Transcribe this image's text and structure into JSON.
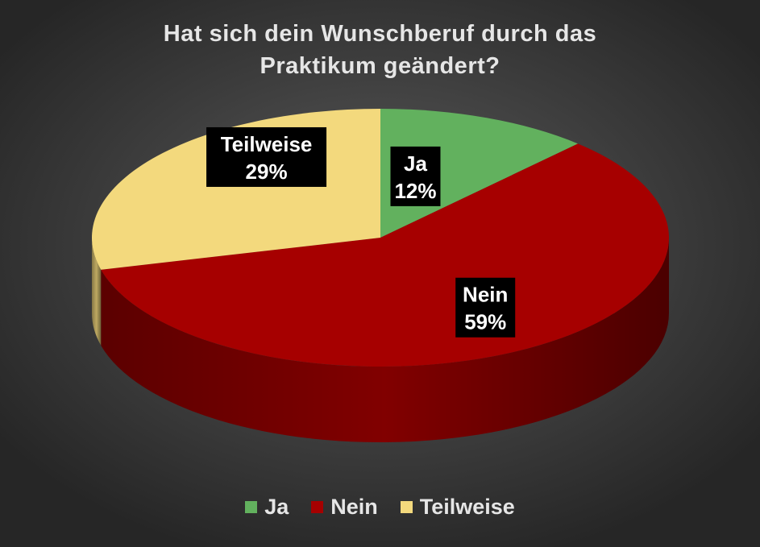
{
  "chart_data": {
    "type": "pie",
    "title_lines": [
      "Hat sich dein Wunschberuf durch das",
      "Praktikum geändert?"
    ],
    "slices": [
      {
        "label": "Ja",
        "value": 12,
        "value_label": "12%",
        "color": "#62b15e"
      },
      {
        "label": "Nein",
        "value": 59,
        "value_label": "59%",
        "color": "#a60000"
      },
      {
        "label": "Teilweise",
        "value": 29,
        "value_label": "29%",
        "color": "#f3d97d"
      }
    ],
    "legend_placement": "bottom",
    "style": "3d"
  },
  "colors": {
    "title": "#e6e6e6",
    "label_background": "#000000",
    "label_text": "#ffffff"
  }
}
